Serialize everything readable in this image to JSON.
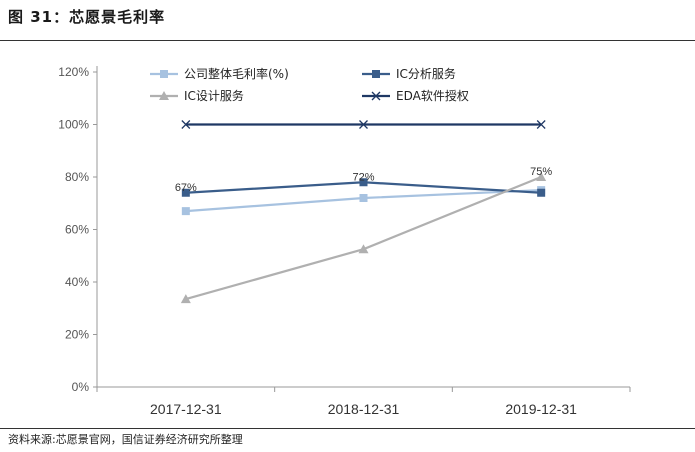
{
  "figure": {
    "title": "图 31：芯愿景毛利率",
    "source": "资料来源:芯愿景官网，国信证券经济研究所整理"
  },
  "chart_data": {
    "type": "line",
    "title": "",
    "xlabel": "",
    "ylabel": "",
    "categories": [
      "2017-12-31",
      "2018-12-31",
      "2019-12-31"
    ],
    "ylim": [
      0,
      120
    ],
    "yticks": [
      "0%",
      "20%",
      "40%",
      "60%",
      "80%",
      "100%",
      "120%"
    ],
    "ytick_values": [
      0,
      20,
      40,
      60,
      80,
      100,
      120
    ],
    "grid": false,
    "legend_position": "top",
    "series": [
      {
        "name": "公司整体毛利率(%)",
        "values": [
          67,
          72,
          75
        ],
        "color": "#a7c2e0",
        "marker": "square"
      },
      {
        "name": "IC分析服务",
        "values": [
          74,
          78,
          74
        ],
        "color": "#3a5d8a",
        "marker": "square"
      },
      {
        "name": "IC设计服务",
        "values": [
          33.5,
          52.5,
          80
        ],
        "color": "#b0b0b0",
        "marker": "triangle"
      },
      {
        "name": "EDA软件授权",
        "values": [
          100,
          100,
          100
        ],
        "color": "#1f3864",
        "marker": "x"
      }
    ],
    "data_labels": [
      {
        "text": "67%",
        "series": 1,
        "index": 0
      },
      {
        "text": "72%",
        "series": 1,
        "index": 1
      },
      {
        "text": "75%",
        "series": 2,
        "index": 2
      }
    ]
  }
}
